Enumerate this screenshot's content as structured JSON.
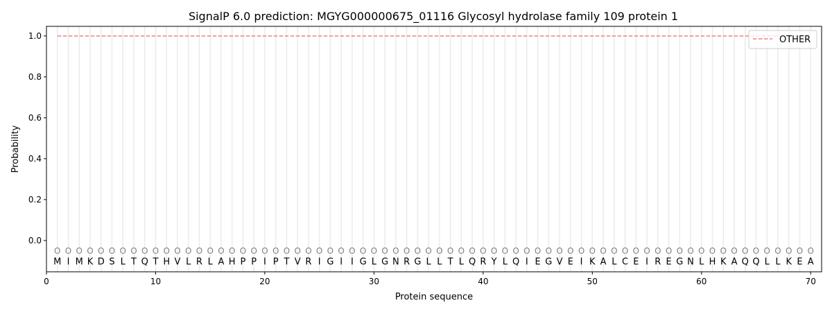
{
  "chart_data": {
    "type": "line",
    "title": "SignalP 6.0 prediction: MGYG000000675_01116 Glycosyl hydrolase family 109 protein 1",
    "xlabel": "Protein sequence",
    "ylabel": "Probability",
    "xlim": [
      0,
      71
    ],
    "ylim": [
      -0.153,
      1.047
    ],
    "xticks": [
      0,
      10,
      20,
      30,
      40,
      50,
      60,
      70
    ],
    "yticks": [
      "0.0",
      "0.2",
      "0.4",
      "0.6",
      "0.8",
      "1.0"
    ],
    "grid": "vertical lines at each residue",
    "legend_placement": "top-right",
    "sequence": [
      "M",
      "I",
      "M",
      "K",
      "D",
      "S",
      "L",
      "T",
      "Q",
      "T",
      "H",
      "V",
      "L",
      "R",
      "L",
      "A",
      "H",
      "P",
      "P",
      "I",
      "P",
      "T",
      "V",
      "R",
      "I",
      "G",
      "I",
      "I",
      "G",
      "L",
      "G",
      "N",
      "R",
      "G",
      "L",
      "L",
      "T",
      "L",
      "Q",
      "R",
      "Y",
      "L",
      "Q",
      "I",
      "E",
      "G",
      "V",
      "E",
      "I",
      "K",
      "A",
      "L",
      "C",
      "E",
      "I",
      "R",
      "E",
      "G",
      "N",
      "L",
      "H",
      "K",
      "A",
      "Q",
      "Q",
      "L",
      "L",
      "K",
      "E",
      "A"
    ],
    "predicted_label": "O",
    "series": [
      {
        "name": "OTHER",
        "color": "#f08080",
        "style": "dashed",
        "x_start": 1,
        "x_end": 70,
        "value": 1.0
      }
    ]
  }
}
